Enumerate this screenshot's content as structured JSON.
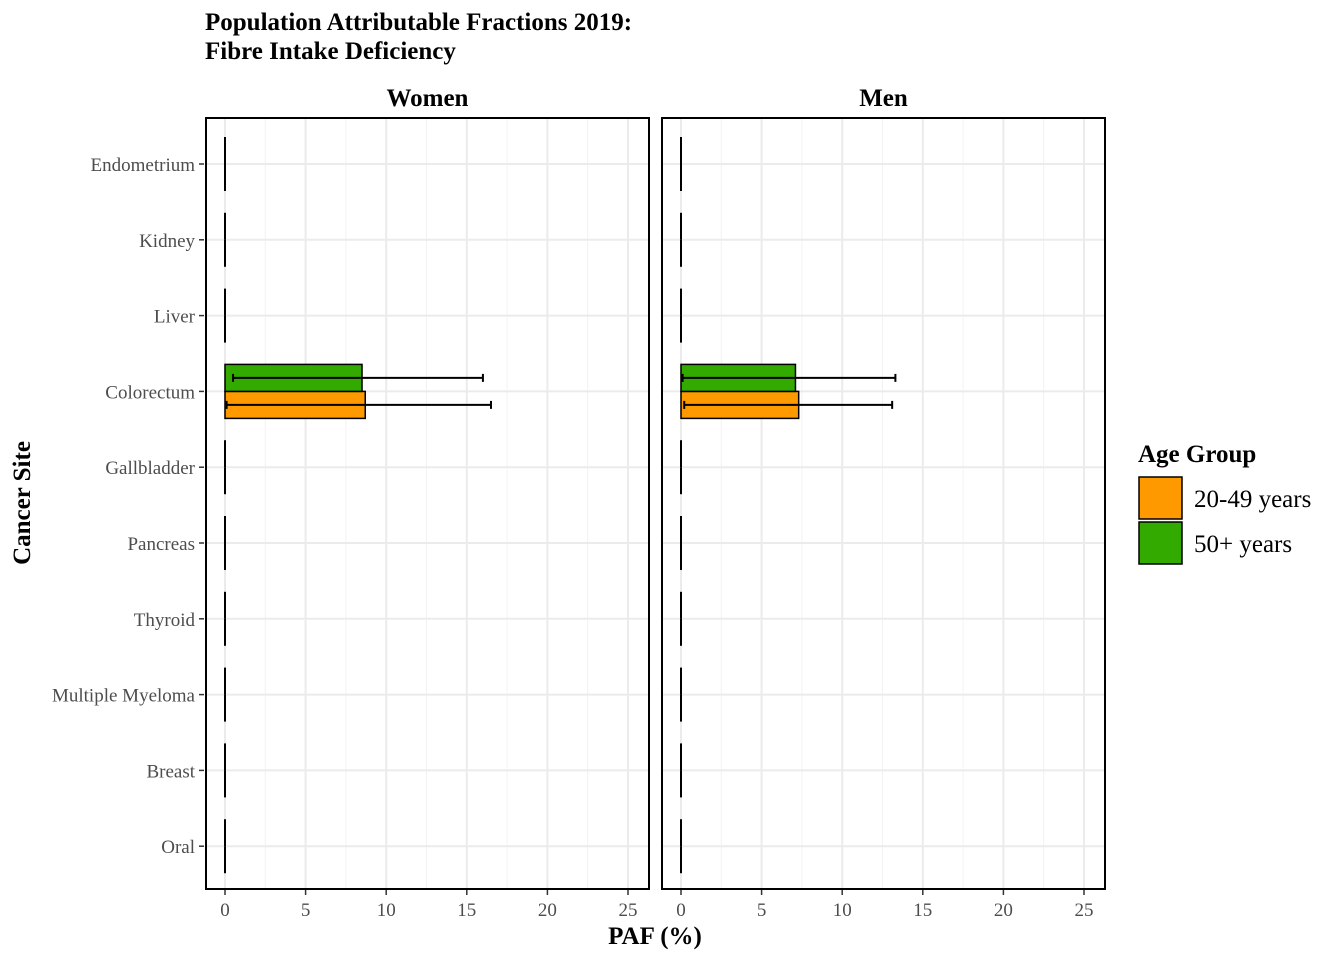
{
  "title_lines": [
    "Population Attributable Fractions 2019:",
    "Fibre Intake Deficiency"
  ],
  "chart_data": {
    "type": "bar",
    "orientation": "horizontal",
    "title": "Population Attributable Fractions 2019: Fibre Intake Deficiency",
    "xlabel": "PAF (%)",
    "ylabel": "Cancer Site",
    "xlim": [
      0,
      25
    ],
    "xticks": [
      0,
      5,
      10,
      15,
      20,
      25
    ],
    "grid": true,
    "legend_position": "right",
    "legend_title": "Age Group",
    "categories": [
      "Endometrium",
      "Kidney",
      "Liver",
      "Colorectum",
      "Gallbladder",
      "Pancreas",
      "Thyroid",
      "Multiple Myeloma",
      "Breast",
      "Oral"
    ],
    "series_colors": {
      "20-49 years": "#ff9900",
      "50+ years": "#33aa00"
    },
    "legend_items": [
      {
        "label": "20-49 years",
        "color": "#ff9900"
      },
      {
        "label": "50+ years",
        "color": "#33aa00"
      }
    ],
    "facets": [
      {
        "name": "Women",
        "series": [
          {
            "name": "20-49 years",
            "values": [
              0,
              0,
              0,
              8.7,
              0,
              0,
              0,
              0,
              0,
              0
            ],
            "lower": [
              0,
              0,
              0,
              0.1,
              0,
              0,
              0,
              0,
              0,
              0
            ],
            "upper": [
              0,
              0,
              0,
              16.5,
              0,
              0,
              0,
              0,
              0,
              0
            ]
          },
          {
            "name": "50+ years",
            "values": [
              0,
              0,
              0,
              8.5,
              0,
              0,
              0,
              0,
              0,
              0
            ],
            "lower": [
              0,
              0,
              0,
              0.5,
              0,
              0,
              0,
              0,
              0,
              0
            ],
            "upper": [
              0,
              0,
              0,
              16.0,
              0,
              0,
              0,
              0,
              0,
              0
            ]
          }
        ]
      },
      {
        "name": "Men",
        "series": [
          {
            "name": "20-49 years",
            "values": [
              0,
              0,
              0,
              7.3,
              0,
              0,
              0,
              0,
              0,
              0
            ],
            "lower": [
              0,
              0,
              0,
              0.2,
              0,
              0,
              0,
              0,
              0,
              0
            ],
            "upper": [
              0,
              0,
              0,
              13.1,
              0,
              0,
              0,
              0,
              0,
              0
            ]
          },
          {
            "name": "50+ years",
            "values": [
              0,
              0,
              0,
              7.1,
              0,
              0,
              0,
              0,
              0,
              0
            ],
            "lower": [
              0,
              0,
              0,
              0.1,
              0,
              0,
              0,
              0,
              0,
              0
            ],
            "upper": [
              0,
              0,
              0,
              13.3,
              0,
              0,
              0,
              0,
              0,
              0
            ]
          }
        ]
      }
    ]
  }
}
